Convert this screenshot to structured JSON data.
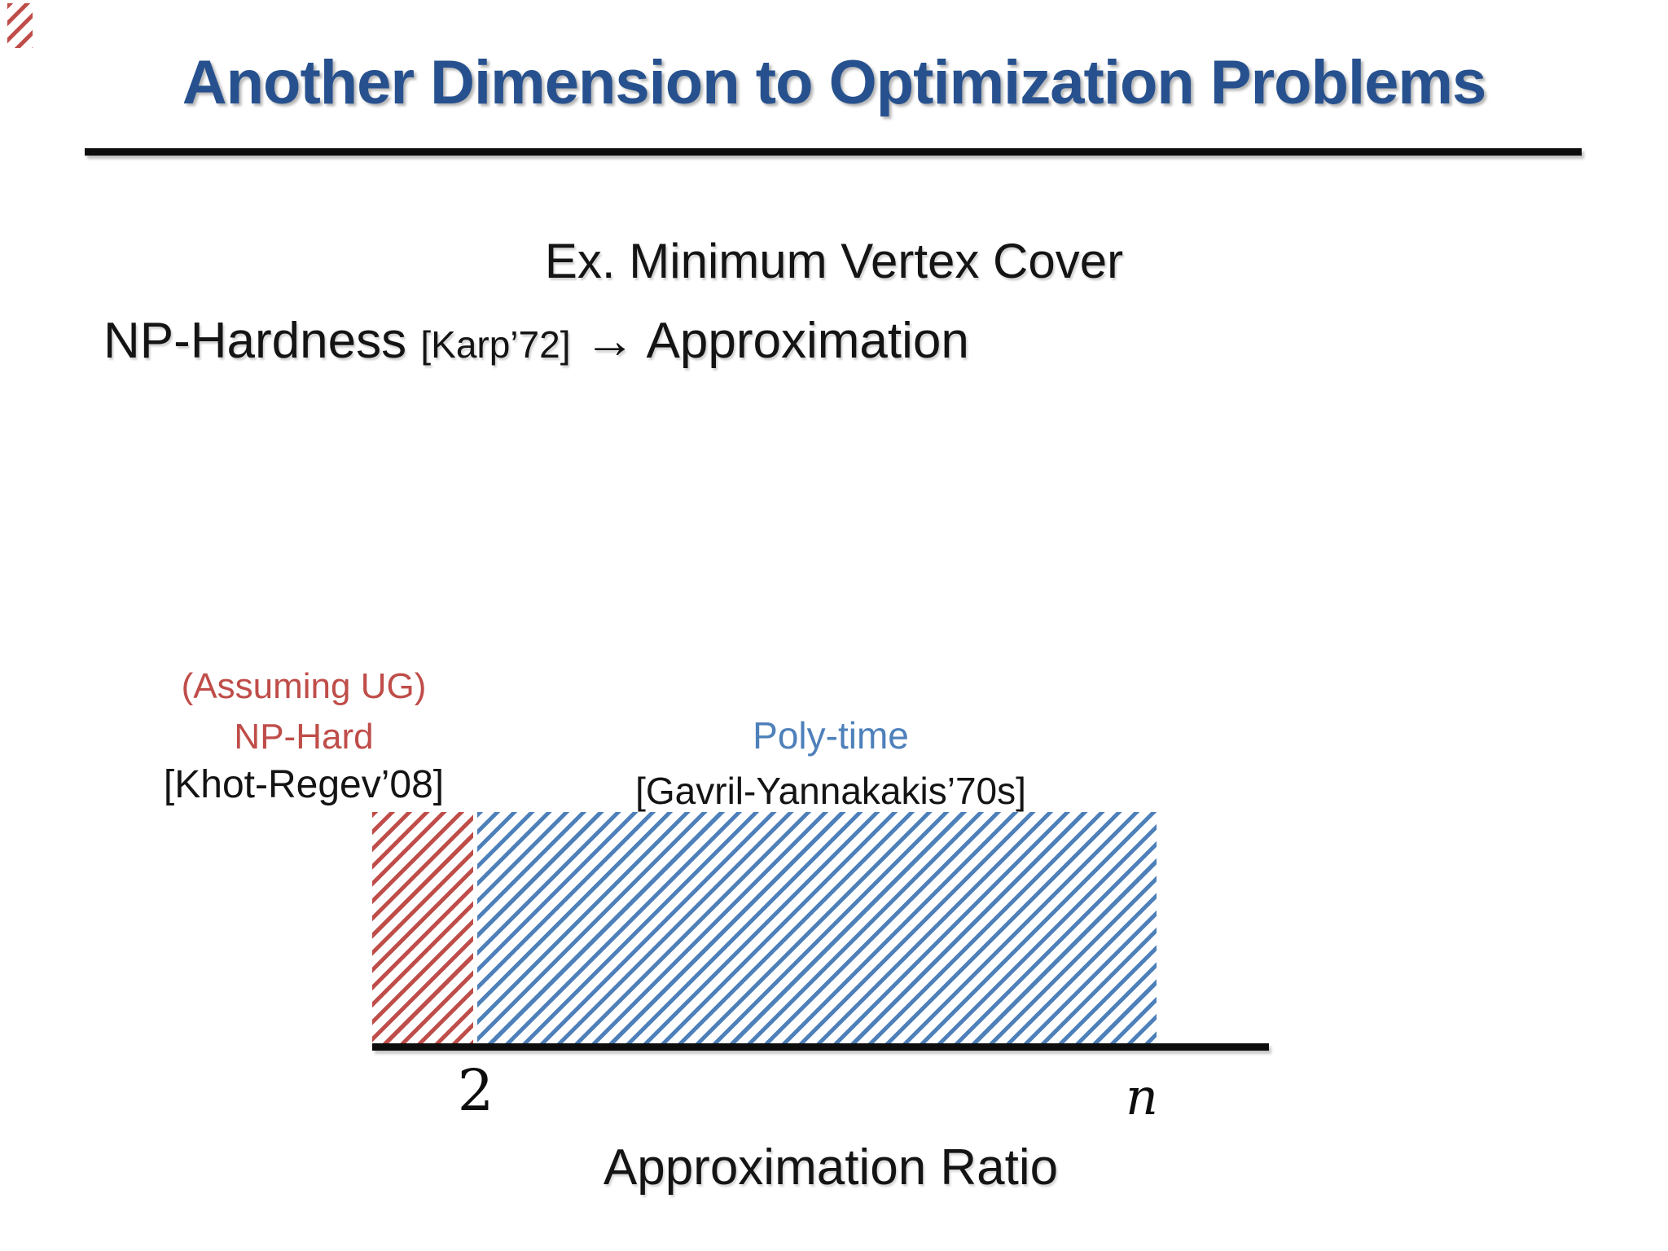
{
  "slide": {
    "title": "Another Dimension to Optimization Problems",
    "example_heading": "Ex. Minimum Vertex Cover",
    "statement": {
      "subject": "NP-Hardness",
      "citation": "[Karp’72]",
      "arrow": "→",
      "result": "Approximation"
    }
  },
  "figure": {
    "type": "range-diagram",
    "axis_label": "Approximation Ratio",
    "regions": [
      {
        "name": "hard",
        "label_line1": "(Assuming UG)",
        "label_line2": "NP-Hard",
        "citation": "[Khot-Regev’08]",
        "range_start": "2 (below)",
        "range_end": "2",
        "color": "#bf4d49"
      },
      {
        "name": "poly",
        "label_line1": "Poly-time",
        "citation": "[Gavril-Yannakakis’70s]",
        "range_start": "2",
        "range_end": "n",
        "color": "#4e80ba"
      }
    ],
    "ticks": {
      "left": "2",
      "right": "n"
    },
    "colors": {
      "hard_red": "#bf4d49",
      "poly_blue": "#4e80ba",
      "title_navy": "#27518e",
      "axis_black": "#0d0d0d"
    }
  }
}
